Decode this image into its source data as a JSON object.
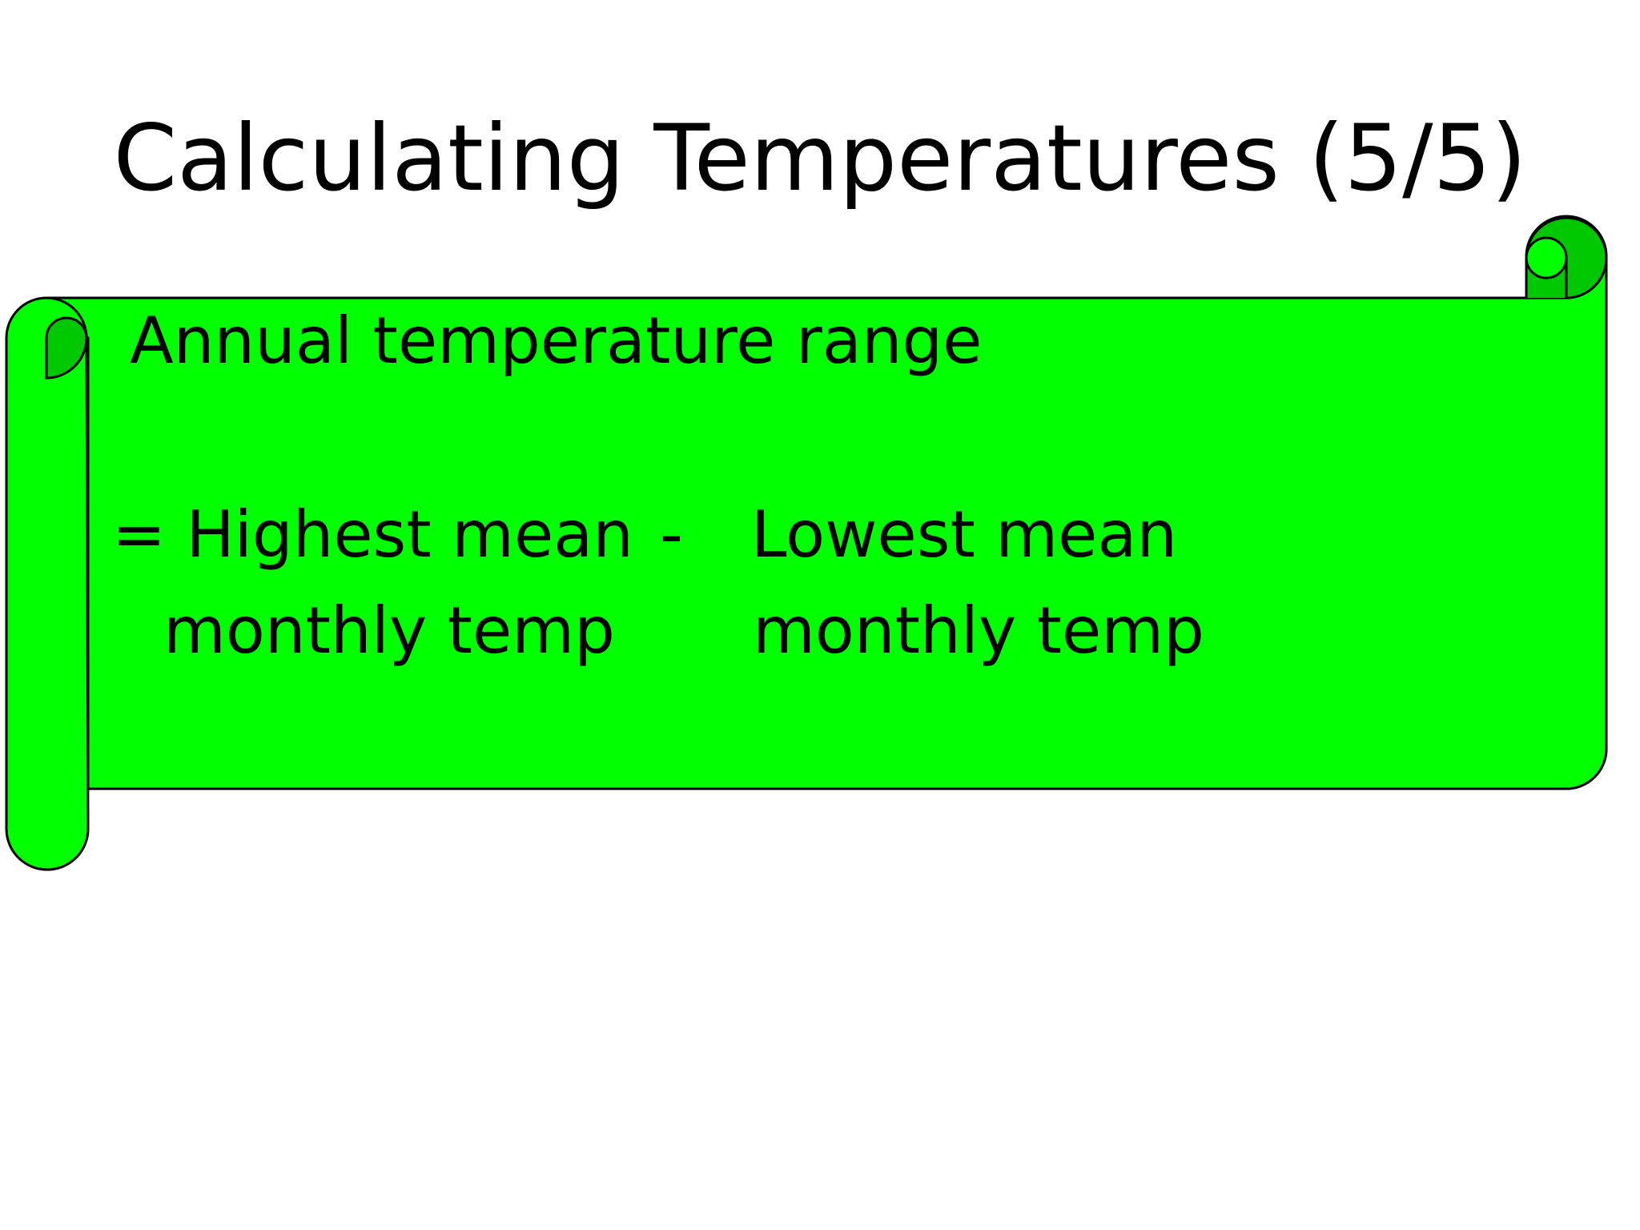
{
  "slide": {
    "title": "Calculating Temperatures (5/5)",
    "scroll": {
      "fill_color": "#00ff00",
      "shadow_color": "#00c800",
      "outline_color": "#000000",
      "heading": "Annual temperature range",
      "formula": {
        "left_line1": "= Highest mean",
        "operator": "-",
        "right_line1": "Lowest mean",
        "left_line2": "monthly temp",
        "right_line2": "monthly temp"
      }
    }
  }
}
